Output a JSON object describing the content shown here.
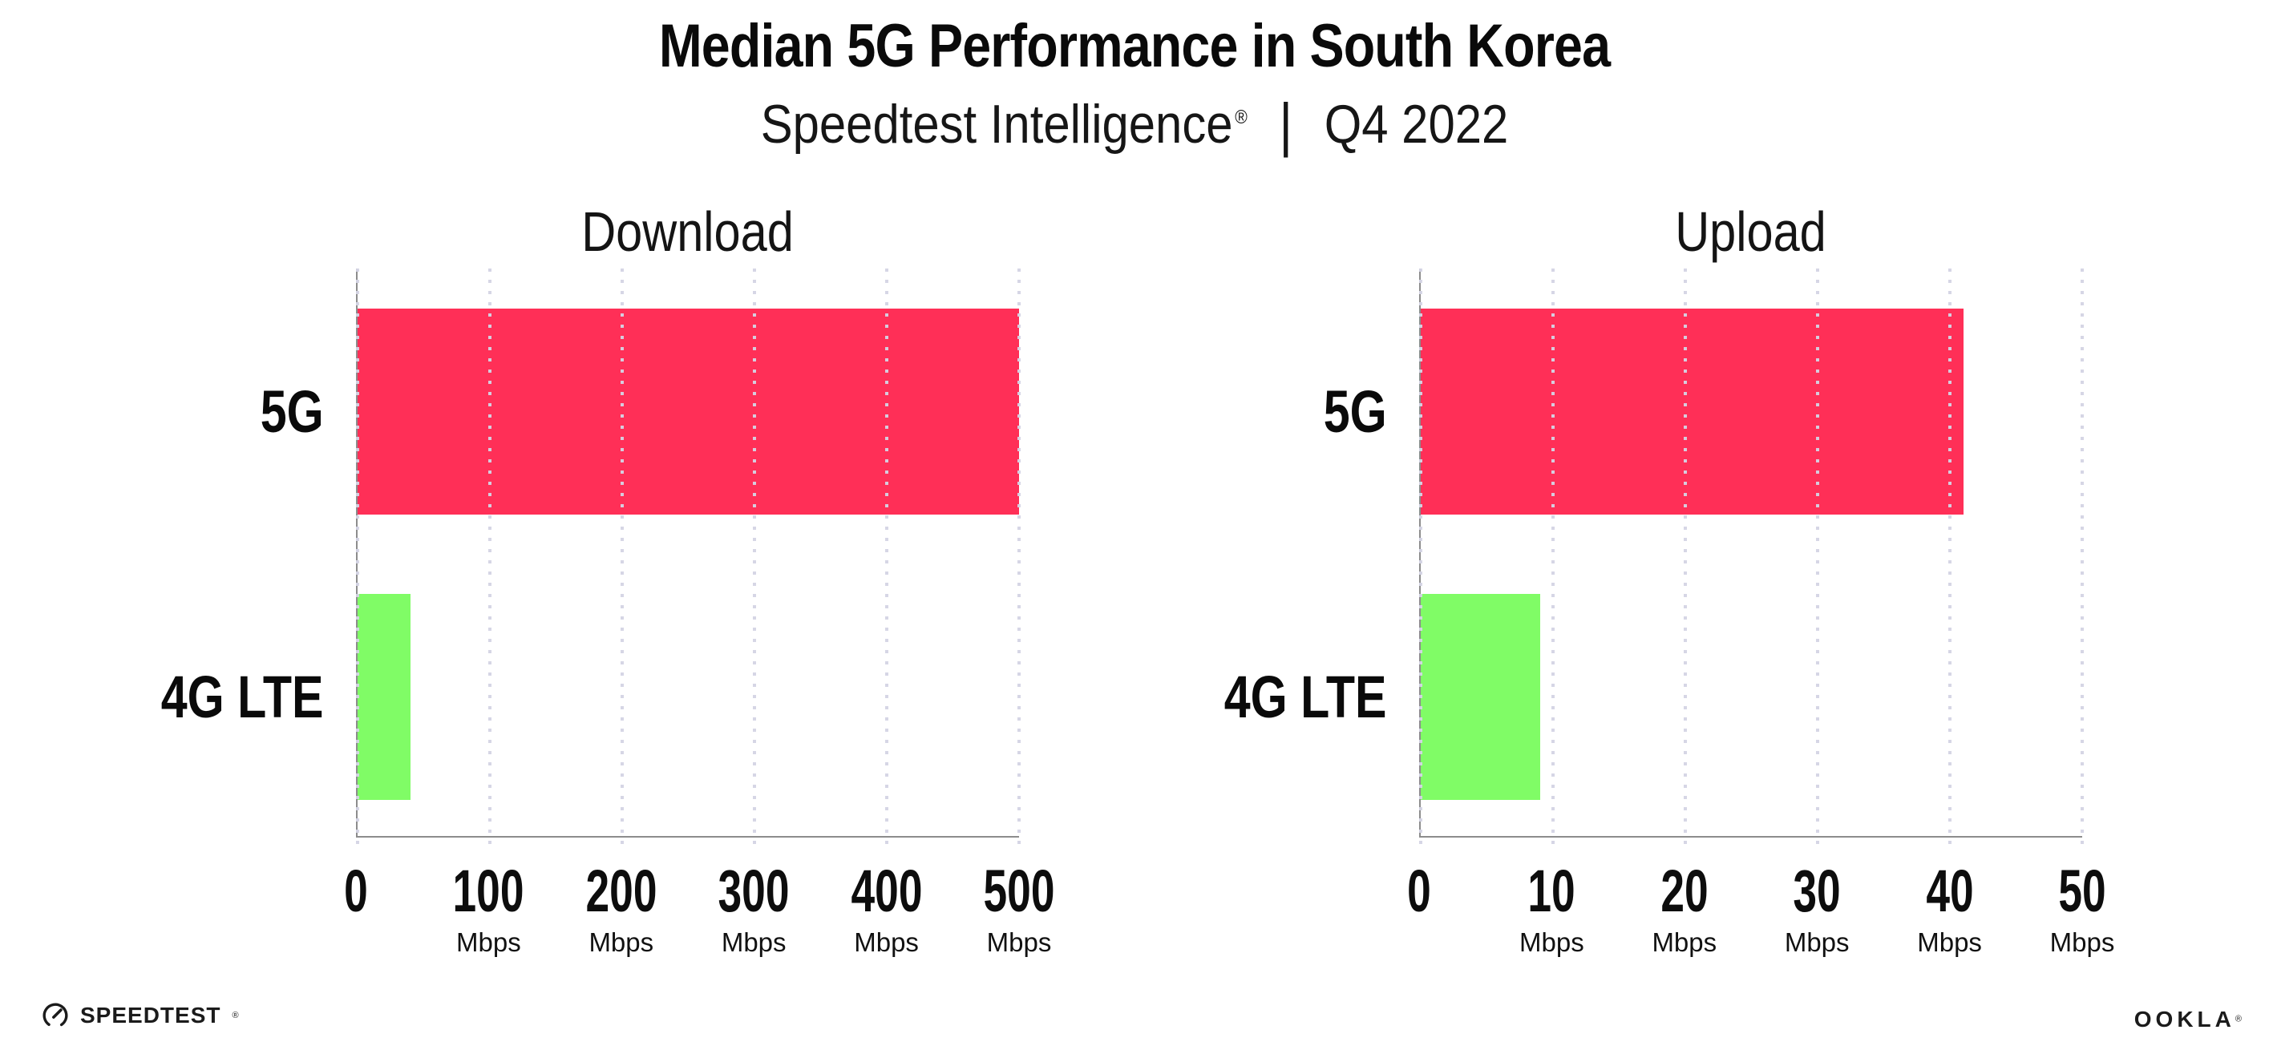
{
  "title": "Median 5G Performance in South Korea",
  "subtitle": {
    "brand": "Speedtest Intelligence",
    "registered": "®",
    "separator": "|",
    "period": "Q4 2022"
  },
  "chart_data": [
    {
      "type": "bar",
      "orientation": "horizontal",
      "title": "Download",
      "categories": [
        "5G",
        "4G LTE"
      ],
      "values": [
        500,
        40
      ],
      "unit": "Mbps",
      "xlim": [
        0,
        500
      ],
      "xticks": [
        0,
        100,
        200,
        300,
        400,
        500
      ],
      "xtick_labels": [
        {
          "value": "0",
          "unit": ""
        },
        {
          "value": "100",
          "unit": "Mbps"
        },
        {
          "value": "200",
          "unit": "Mbps"
        },
        {
          "value": "300",
          "unit": "Mbps"
        },
        {
          "value": "400",
          "unit": "Mbps"
        },
        {
          "value": "500",
          "unit": "Mbps"
        }
      ],
      "bar_colors": [
        "#FF2F57",
        "#80FC66"
      ],
      "grid": "dotted-vertical",
      "legend": "none"
    },
    {
      "type": "bar",
      "orientation": "horizontal",
      "title": "Upload",
      "categories": [
        "5G",
        "4G LTE"
      ],
      "values": [
        41,
        9
      ],
      "unit": "Mbps",
      "xlim": [
        0,
        50
      ],
      "xticks": [
        0,
        10,
        20,
        30,
        40,
        50
      ],
      "xtick_labels": [
        {
          "value": "0",
          "unit": ""
        },
        {
          "value": "10",
          "unit": "Mbps"
        },
        {
          "value": "20",
          "unit": "Mbps"
        },
        {
          "value": "30",
          "unit": "Mbps"
        },
        {
          "value": "40",
          "unit": "Mbps"
        },
        {
          "value": "50",
          "unit": "Mbps"
        }
      ],
      "bar_colors": [
        "#FF2F57",
        "#80FC66"
      ],
      "grid": "dotted-vertical",
      "legend": "none"
    }
  ],
  "footer": {
    "speedtest_label": "SPEEDTEST",
    "speedtest_reg": "®",
    "ookla_label": "OOKLA",
    "ookla_reg": "®"
  },
  "colors": {
    "background": "#ffffff",
    "bar_5g": "#FF2F57",
    "bar_4g_lte": "#80FC66",
    "axis_line": "#8c8c8c",
    "gridline": "#d4d4e4",
    "text": "#0d0d0d"
  }
}
